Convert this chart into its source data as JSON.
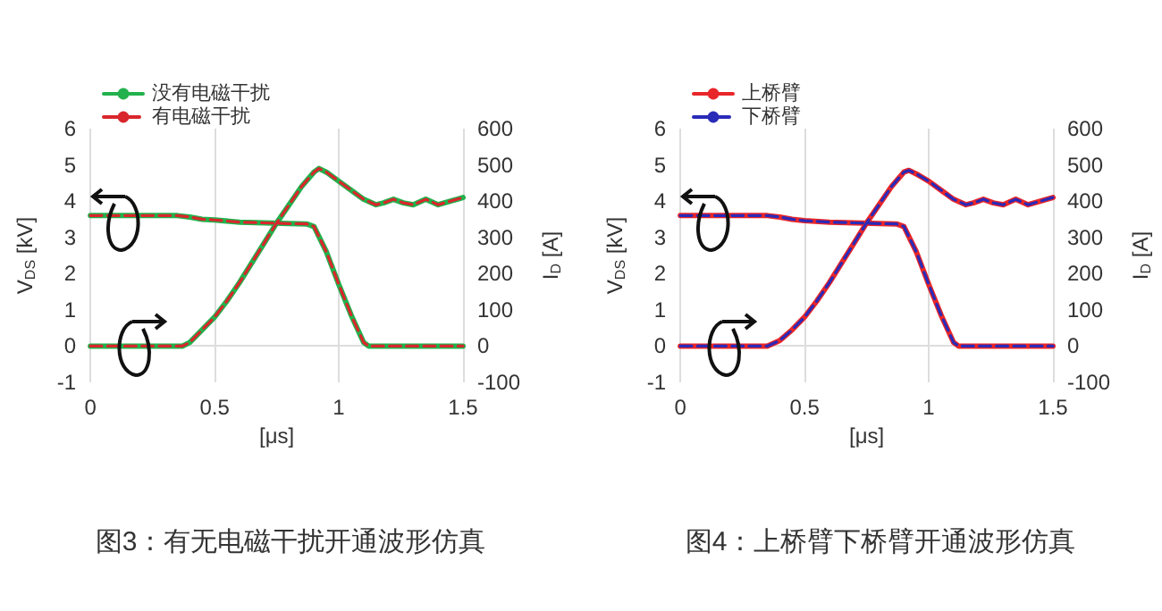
{
  "chart_data": [
    {
      "type": "line",
      "title": "图3：有无电磁干扰开通波形仿真",
      "xlabel": "[μs]",
      "ylabel": "V$_{DS}$ [kV]",
      "y2label": "I$_{D}$ [A]",
      "xlim": [
        0,
        1.5
      ],
      "xticks": [
        0,
        0.5,
        1,
        1.5
      ],
      "ylim": [
        -1,
        6
      ],
      "yticks": [
        -1,
        0,
        1,
        2,
        3,
        4,
        5,
        6
      ],
      "y2lim": [
        -100,
        600
      ],
      "y2ticks": [
        -100,
        0,
        100,
        200,
        300,
        400,
        500,
        600
      ],
      "grid": "x",
      "legend": "top left",
      "marker": "none",
      "series": [
        {
          "name": "没有电磁干扰",
          "color": "#22b14c",
          "line_style": "solid",
          "x": [
            0,
            0.35,
            0.4,
            0.45,
            0.5,
            0.6,
            0.7,
            0.8,
            0.87,
            0.9,
            0.95,
            1.0,
            1.05,
            1.1,
            1.12,
            1.2,
            1.3,
            1.4,
            1.5
          ],
          "values": [
            3.6,
            3.6,
            3.56,
            3.5,
            3.48,
            3.42,
            3.4,
            3.38,
            3.37,
            3.3,
            2.6,
            1.7,
            0.85,
            0.1,
            0,
            0,
            0,
            0,
            0
          ]
        },
        {
          "color": "#22b14c",
          "line_style": "solid",
          "axis": "y2",
          "x": [
            0,
            0.37,
            0.4,
            0.45,
            0.5,
            0.55,
            0.6,
            0.65,
            0.7,
            0.75,
            0.8,
            0.85,
            0.9,
            0.92,
            0.95,
            1.0,
            1.05,
            1.1,
            1.15,
            1.18,
            1.22,
            1.26,
            1.3,
            1.35,
            1.4,
            1.45,
            1.5
          ],
          "values": [
            0,
            0,
            10,
            45,
            80,
            125,
            175,
            230,
            285,
            340,
            390,
            440,
            480,
            490,
            480,
            455,
            430,
            405,
            390,
            395,
            405,
            395,
            390,
            405,
            390,
            400,
            410
          ]
        },
        {
          "name": "有电磁干扰",
          "color": "#d9262c",
          "line_style": "dashed",
          "x": [
            0,
            0.35,
            0.4,
            0.45,
            0.5,
            0.6,
            0.7,
            0.8,
            0.87,
            0.9,
            0.95,
            1.0,
            1.05,
            1.1,
            1.12,
            1.2,
            1.3,
            1.4,
            1.5
          ],
          "values": [
            3.6,
            3.6,
            3.56,
            3.5,
            3.48,
            3.42,
            3.4,
            3.38,
            3.37,
            3.3,
            2.6,
            1.7,
            0.85,
            0.1,
            0,
            0,
            0,
            0,
            0
          ]
        },
        {
          "color": "#d9262c",
          "line_style": "dashed",
          "axis": "y2",
          "x": [
            0,
            0.37,
            0.4,
            0.45,
            0.5,
            0.55,
            0.6,
            0.65,
            0.7,
            0.75,
            0.8,
            0.85,
            0.9,
            0.92,
            0.95,
            1.0,
            1.05,
            1.1,
            1.15,
            1.18,
            1.22,
            1.26,
            1.3,
            1.35,
            1.4,
            1.45,
            1.5
          ],
          "values": [
            0,
            0,
            10,
            45,
            80,
            125,
            175,
            230,
            285,
            340,
            390,
            440,
            480,
            490,
            480,
            455,
            430,
            405,
            390,
            395,
            405,
            395,
            390,
            405,
            390,
            400,
            410
          ]
        }
      ]
    },
    {
      "type": "line",
      "title": "图4：上桥臂下桥臂开通波形仿真",
      "xlabel": "[μs]",
      "ylabel": "V$_{DS}$ [kV]",
      "y2label": "I$_{D}$ [A]",
      "xlim": [
        0,
        1.5
      ],
      "xticks": [
        0,
        0.5,
        1,
        1.5
      ],
      "ylim": [
        -1,
        6
      ],
      "yticks": [
        -1,
        0,
        1,
        2,
        3,
        4,
        5,
        6
      ],
      "y2lim": [
        -100,
        600
      ],
      "y2ticks": [
        -100,
        0,
        100,
        200,
        300,
        400,
        500,
        600
      ],
      "grid": "x",
      "legend": "top left",
      "marker": "none",
      "series": [
        {
          "name": "上桥臂",
          "color": "#e8262a",
          "line_style": "solid",
          "x": [
            0,
            0.35,
            0.4,
            0.45,
            0.5,
            0.6,
            0.7,
            0.8,
            0.87,
            0.9,
            0.95,
            1.0,
            1.05,
            1.1,
            1.12,
            1.2,
            1.3,
            1.4,
            1.5
          ],
          "values": [
            3.6,
            3.6,
            3.56,
            3.5,
            3.46,
            3.42,
            3.4,
            3.38,
            3.37,
            3.3,
            2.6,
            1.7,
            0.85,
            0.1,
            0,
            0,
            0,
            0,
            0
          ]
        },
        {
          "color": "#e8262a",
          "line_style": "solid",
          "axis": "y2",
          "x": [
            0,
            0.35,
            0.4,
            0.45,
            0.5,
            0.55,
            0.6,
            0.65,
            0.7,
            0.75,
            0.8,
            0.85,
            0.9,
            0.92,
            0.95,
            1.0,
            1.05,
            1.1,
            1.15,
            1.18,
            1.22,
            1.26,
            1.3,
            1.35,
            1.4,
            1.45,
            1.5
          ],
          "values": [
            0,
            0,
            15,
            45,
            80,
            125,
            175,
            230,
            285,
            340,
            390,
            440,
            480,
            485,
            475,
            455,
            430,
            405,
            390,
            395,
            405,
            395,
            390,
            405,
            390,
            400,
            410
          ]
        },
        {
          "name": "下桥臂",
          "color": "#2a2ab8",
          "line_style": "dashed",
          "x": [
            0,
            0.35,
            0.4,
            0.45,
            0.5,
            0.6,
            0.7,
            0.8,
            0.87,
            0.9,
            0.95,
            1.0,
            1.05,
            1.1,
            1.12,
            1.2,
            1.3,
            1.4,
            1.5
          ],
          "values": [
            3.6,
            3.6,
            3.56,
            3.5,
            3.46,
            3.42,
            3.4,
            3.38,
            3.37,
            3.3,
            2.6,
            1.7,
            0.85,
            0.1,
            0,
            0,
            0,
            0,
            0
          ]
        },
        {
          "color": "#2a2ab8",
          "line_style": "dashed",
          "axis": "y2",
          "x": [
            0,
            0.35,
            0.4,
            0.45,
            0.5,
            0.55,
            0.6,
            0.65,
            0.7,
            0.75,
            0.8,
            0.85,
            0.9,
            0.92,
            0.95,
            1.0,
            1.05,
            1.1,
            1.15,
            1.18,
            1.22,
            1.26,
            1.3,
            1.35,
            1.4,
            1.45,
            1.5
          ],
          "values": [
            0,
            0,
            15,
            45,
            80,
            125,
            175,
            230,
            285,
            340,
            390,
            440,
            480,
            485,
            475,
            455,
            430,
            405,
            390,
            395,
            405,
            395,
            390,
            405,
            390,
            400,
            410
          ]
        }
      ]
    }
  ]
}
